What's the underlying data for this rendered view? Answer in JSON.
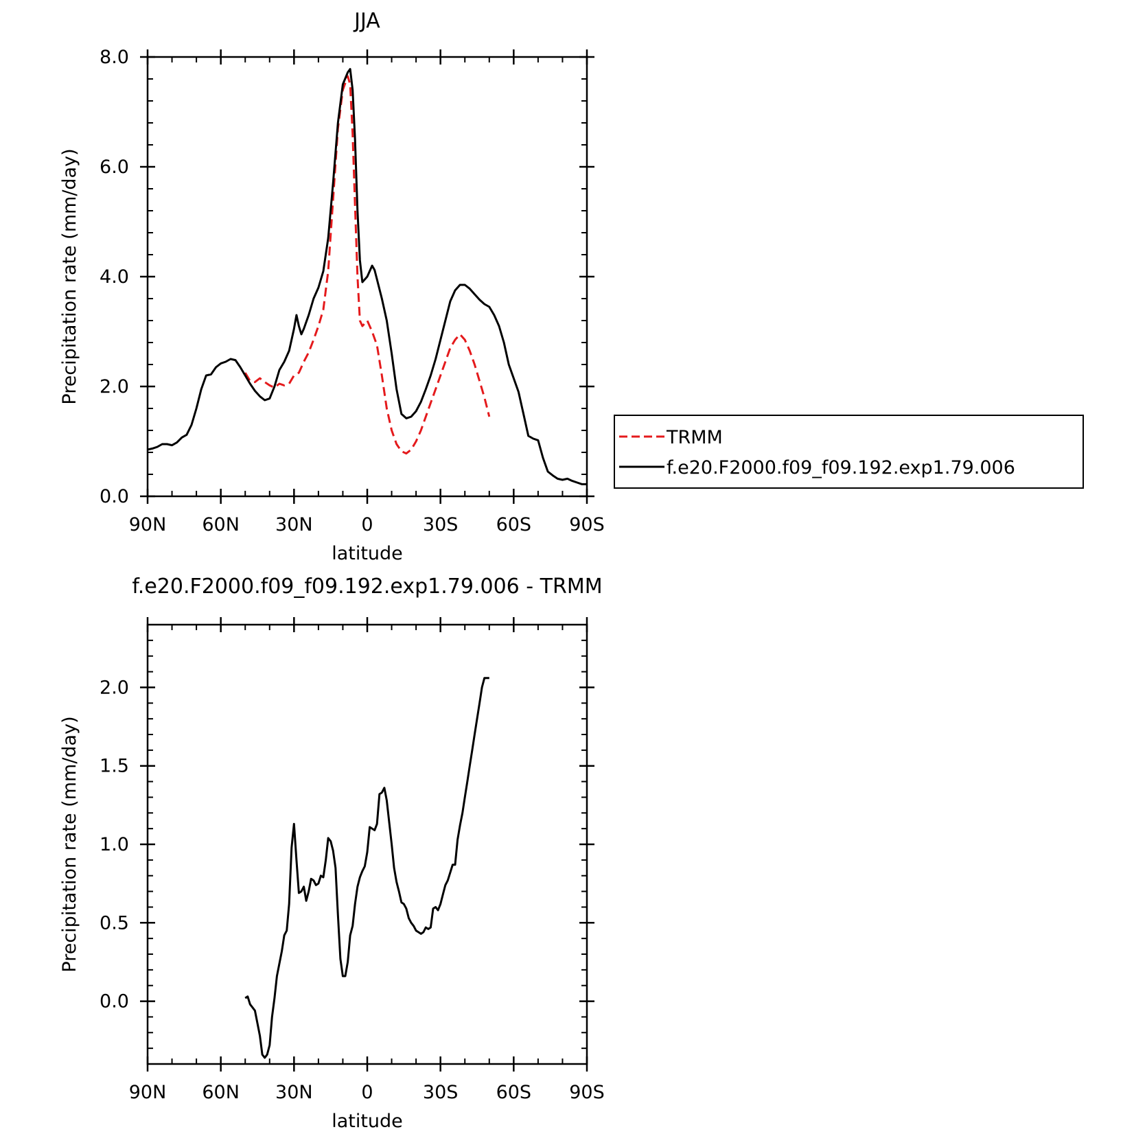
{
  "chart_data": [
    {
      "type": "line",
      "title": "JJA",
      "xlabel": "latitude",
      "ylabel": "Precipitation rate (mm/day)",
      "xlim": [
        90,
        -90
      ],
      "ylim": [
        0,
        8
      ],
      "x_ticks": [
        90,
        60,
        30,
        0,
        -30,
        -60,
        -90
      ],
      "x_tick_labels": [
        "90N",
        "60N",
        "30N",
        "0",
        "30S",
        "60S",
        "90S"
      ],
      "y_ticks": [
        0,
        2,
        4,
        6,
        8
      ],
      "y_tick_labels": [
        "0.0",
        "2.0",
        "4.0",
        "6.0",
        "8.0"
      ],
      "legend_position": "right",
      "series": [
        {
          "name": "TRMM",
          "color": "#e41a1c",
          "dash": true,
          "x": [
            50,
            48,
            46,
            44,
            42,
            40,
            38,
            36,
            34,
            32,
            30,
            28,
            26,
            24,
            22,
            20,
            18,
            16,
            14,
            12,
            10,
            8,
            7,
            6,
            5,
            4,
            3,
            2,
            0,
            -2,
            -4,
            -6,
            -8,
            -10,
            -12,
            -14,
            -16,
            -18,
            -20,
            -22,
            -24,
            -26,
            -28,
            -30,
            -32,
            -34,
            -36,
            -38,
            -40,
            -42,
            -44,
            -46,
            -48,
            -50
          ],
          "y": [
            2.25,
            2.1,
            2.08,
            2.15,
            2.08,
            2.02,
            1.98,
            2.05,
            2.02,
            2.05,
            2.2,
            2.25,
            2.45,
            2.62,
            2.85,
            3.1,
            3.4,
            4.1,
            5.4,
            6.7,
            7.4,
            7.65,
            7.5,
            6.6,
            5.3,
            4.0,
            3.2,
            3.1,
            3.2,
            3.0,
            2.75,
            2.2,
            1.6,
            1.2,
            0.95,
            0.82,
            0.78,
            0.85,
            1.0,
            1.2,
            1.45,
            1.7,
            1.95,
            2.2,
            2.45,
            2.7,
            2.85,
            2.95,
            2.85,
            2.65,
            2.4,
            2.1,
            1.8,
            1.45
          ]
        },
        {
          "name": "f.e20.F2000.f09_f09.192.exp1.79.006",
          "color": "#000000",
          "dash": false,
          "x": [
            90,
            88,
            86,
            84,
            82,
            80,
            78,
            76,
            74,
            72,
            70,
            68,
            66,
            64,
            62,
            60,
            58,
            56,
            54,
            52,
            50,
            48,
            46,
            44,
            42,
            40,
            38,
            36,
            34,
            32,
            30,
            29,
            28,
            27,
            26,
            24,
            22,
            20,
            18,
            16,
            14,
            12,
            10,
            8,
            7,
            6,
            5,
            4,
            3,
            2,
            0,
            -2,
            -3,
            -4,
            -6,
            -8,
            -10,
            -12,
            -14,
            -16,
            -18,
            -20,
            -22,
            -24,
            -26,
            -28,
            -30,
            -32,
            -34,
            -36,
            -38,
            -40,
            -42,
            -44,
            -46,
            -48,
            -50,
            -52,
            -54,
            -56,
            -58,
            -60,
            -62,
            -64,
            -66,
            -68,
            -70,
            -72,
            -74,
            -76,
            -78,
            -80,
            -82,
            -84,
            -86,
            -88,
            -90
          ],
          "y": [
            0.85,
            0.87,
            0.9,
            0.95,
            0.95,
            0.93,
            0.98,
            1.07,
            1.12,
            1.3,
            1.6,
            1.95,
            2.2,
            2.22,
            2.35,
            2.42,
            2.45,
            2.5,
            2.48,
            2.35,
            2.2,
            2.05,
            1.92,
            1.82,
            1.75,
            1.78,
            2.0,
            2.3,
            2.45,
            2.65,
            3.05,
            3.3,
            3.1,
            2.95,
            3.05,
            3.3,
            3.6,
            3.8,
            4.1,
            4.7,
            5.7,
            6.8,
            7.5,
            7.72,
            7.78,
            7.4,
            6.5,
            5.2,
            4.3,
            3.9,
            4.0,
            4.2,
            4.12,
            3.95,
            3.6,
            3.2,
            2.6,
            1.95,
            1.5,
            1.42,
            1.45,
            1.55,
            1.72,
            1.95,
            2.2,
            2.5,
            2.85,
            3.2,
            3.55,
            3.75,
            3.85,
            3.85,
            3.78,
            3.68,
            3.58,
            3.5,
            3.45,
            3.3,
            3.1,
            2.8,
            2.4,
            2.15,
            1.9,
            1.5,
            1.1,
            1.05,
            1.02,
            0.7,
            0.45,
            0.38,
            0.32,
            0.3,
            0.32,
            0.28,
            0.25,
            0.22,
            0.22
          ]
        }
      ]
    },
    {
      "type": "line",
      "title": "f.e20.F2000.f09_f09.192.exp1.79.006 - TRMM",
      "xlabel": "latitude",
      "ylabel": "Precipitation rate (mm/day)",
      "xlim": [
        90,
        -90
      ],
      "ylim": [
        -0.4,
        2.4
      ],
      "x_ticks": [
        90,
        60,
        30,
        0,
        -30,
        -60,
        -90
      ],
      "x_tick_labels": [
        "90N",
        "60N",
        "30N",
        "0",
        "30S",
        "60S",
        "90S"
      ],
      "y_ticks": [
        0,
        0.5,
        1.0,
        1.5,
        2.0
      ],
      "y_tick_labels": [
        "0.0",
        "0.5",
        "1.0",
        "1.5",
        "2.0"
      ],
      "series": [
        {
          "color": "#000000",
          "dash": false,
          "x": [
            50,
            49,
            48,
            47,
            46,
            45,
            44,
            43,
            42,
            41,
            40,
            39,
            38,
            37,
            36,
            35,
            34,
            33,
            32,
            31,
            30,
            29,
            28,
            27,
            26,
            25,
            24,
            23,
            22,
            21,
            20,
            19,
            18,
            17,
            16,
            15,
            14,
            13,
            12,
            11,
            10,
            9,
            8,
            7,
            6,
            5,
            4,
            3,
            2,
            1,
            0,
            -1,
            -2,
            -3,
            -4,
            -5,
            -6,
            -7,
            -8,
            -9,
            -10,
            -11,
            -12,
            -13,
            -14,
            -15,
            -16,
            -17,
            -18,
            -19,
            -20,
            -21,
            -22,
            -23,
            -24,
            -25,
            -26,
            -27,
            -28,
            -29,
            -30,
            -31,
            -32,
            -33,
            -34,
            -35,
            -36,
            -37,
            -38,
            -39,
            -40,
            -41,
            -42,
            -43,
            -44,
            -45,
            -46,
            -47,
            -48,
            -49,
            -50
          ],
          "y": [
            0.02,
            0.03,
            -0.02,
            -0.04,
            -0.06,
            -0.14,
            -0.22,
            -0.34,
            -0.36,
            -0.34,
            -0.28,
            -0.1,
            0.02,
            0.16,
            0.24,
            0.32,
            0.42,
            0.45,
            0.62,
            0.98,
            1.13,
            0.9,
            0.69,
            0.7,
            0.73,
            0.64,
            0.7,
            0.78,
            0.77,
            0.74,
            0.75,
            0.8,
            0.79,
            0.9,
            1.04,
            1.02,
            0.96,
            0.85,
            0.55,
            0.27,
            0.16,
            0.16,
            0.25,
            0.42,
            0.48,
            0.62,
            0.73,
            0.79,
            0.83,
            0.86,
            0.95,
            1.11,
            1.1,
            1.09,
            1.13,
            1.32,
            1.33,
            1.36,
            1.28,
            1.14,
            1.0,
            0.85,
            0.76,
            0.7,
            0.63,
            0.62,
            0.59,
            0.53,
            0.5,
            0.48,
            0.45,
            0.44,
            0.43,
            0.44,
            0.47,
            0.46,
            0.47,
            0.59,
            0.6,
            0.58,
            0.62,
            0.68,
            0.74,
            0.77,
            0.82,
            0.87,
            0.87,
            1.03,
            1.12,
            1.2,
            1.3,
            1.4,
            1.5,
            1.6,
            1.7,
            1.8,
            1.9,
            2.0,
            2.06,
            2.06,
            2.06
          ]
        }
      ]
    }
  ]
}
